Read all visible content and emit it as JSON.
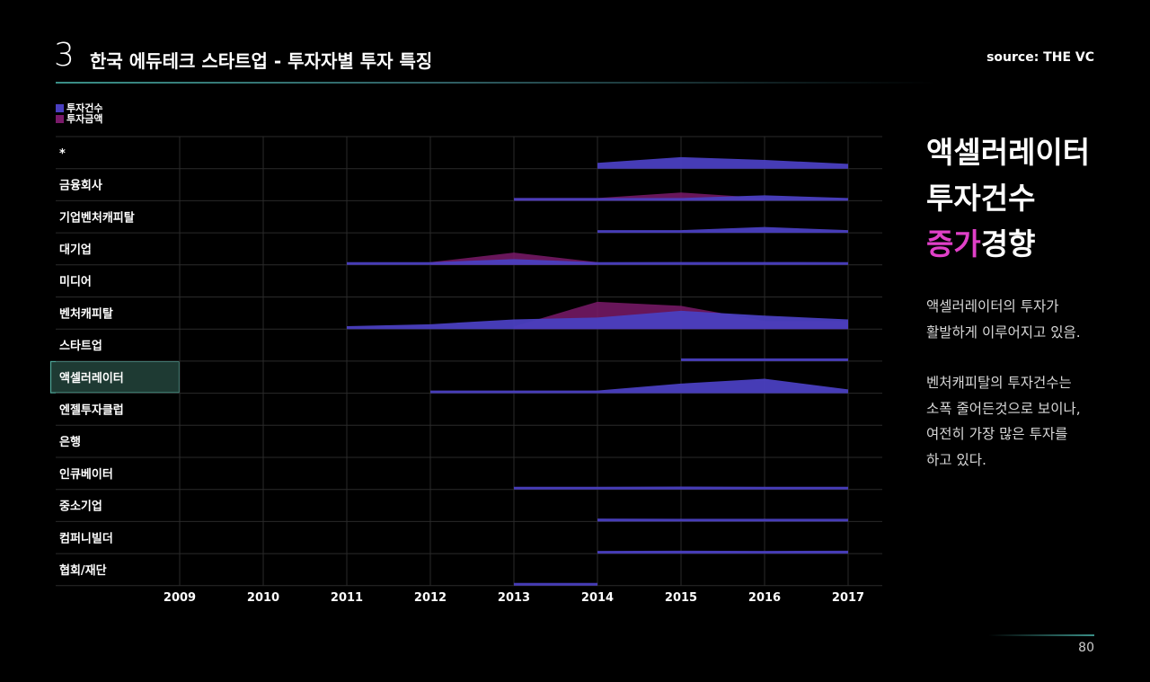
{
  "header": {
    "number": "3",
    "title": "한국 에듀테크 스타트업 - 투자자별 투자 특징",
    "source": "source: THE VC"
  },
  "side": {
    "headline_lines": [
      "액셀러레이터",
      "투자건수"
    ],
    "headline_pink": "증가",
    "headline_rest": "경향",
    "para1_lines": [
      "액셀러레이터의 투자가",
      "활발하게 이루어지고 있음."
    ],
    "para2_lines": [
      "벤처캐피탈의 투자건수는",
      "소폭 줄어든것으로 보이나,",
      "여전히 가장 많은 투자를",
      "하고 있다."
    ]
  },
  "page_number": "80",
  "colors": {
    "count": "#4a3fc0",
    "amount": "#7a1a6a",
    "grid": "#2a2a2a",
    "highlight_fill": "#1e3a33",
    "highlight_border": "#4fa89a",
    "accent_pink": "#e040c8"
  },
  "chart_data": {
    "type": "area",
    "title": "",
    "xlabel": "",
    "ylabel": "",
    "x": [
      2009,
      2010,
      2011,
      2012,
      2013,
      2014,
      2015,
      2016,
      2017
    ],
    "legend": [
      "투자건수",
      "투자금액"
    ],
    "legend_position": "top-left",
    "highlighted_category": "액셀러레이터",
    "categories": [
      {
        "name": "*",
        "count": [
          null,
          null,
          null,
          null,
          null,
          0.3,
          0.6,
          0.45,
          0.25
        ],
        "amount": []
      },
      {
        "name": "금융회사",
        "count": [
          null,
          null,
          null,
          null,
          0.05,
          0.05,
          0.1,
          0.28,
          0.08
        ],
        "amount": [
          null,
          null,
          null,
          null,
          0,
          0.05,
          0.3,
          0,
          null
        ]
      },
      {
        "name": "기업벤처캐피탈",
        "count": [
          null,
          null,
          null,
          null,
          null,
          0.05,
          0.12,
          0.3,
          0.05
        ],
        "amount": []
      },
      {
        "name": "대기업",
        "count": [
          null,
          null,
          0.1,
          0.1,
          0.3,
          0.08,
          0.15,
          0.15,
          0.08
        ],
        "amount": [
          null,
          null,
          null,
          0,
          0.45,
          0,
          null,
          null,
          null
        ]
      },
      {
        "name": "미디어",
        "count": [],
        "amount": []
      },
      {
        "name": "벤처캐피탈",
        "count": [
          null,
          null,
          0.15,
          0.25,
          0.5,
          0.6,
          0.95,
          0.7,
          0.5
        ],
        "amount": [
          null,
          null,
          null,
          null,
          0,
          1.0,
          0.85,
          0.3,
          0.3
        ]
      },
      {
        "name": "스타트업",
        "count": [
          null,
          null,
          null,
          null,
          null,
          null,
          0.08,
          0.08,
          0.08
        ],
        "amount": []
      },
      {
        "name": "액셀러레이터",
        "count": [
          null,
          null,
          null,
          0.08,
          0.08,
          0.08,
          0.5,
          0.75,
          0.2
        ],
        "amount": []
      },
      {
        "name": "엔젤투자클럽",
        "count": [],
        "amount": []
      },
      {
        "name": "은행",
        "count": [],
        "amount": []
      },
      {
        "name": "인큐베이터",
        "count": [
          null,
          null,
          null,
          null,
          0.1,
          0.1,
          0.15,
          0.12,
          0.12
        ],
        "amount": []
      },
      {
        "name": "중소기업",
        "count": [
          null,
          null,
          null,
          null,
          null,
          0.15,
          0.1,
          0.08,
          0.08
        ],
        "amount": []
      },
      {
        "name": "컴퍼니빌더",
        "count": [
          null,
          null,
          null,
          null,
          null,
          0.1,
          0.15,
          0.08,
          0.15
        ],
        "amount": []
      },
      {
        "name": "협회/재단",
        "count": [
          null,
          null,
          null,
          null,
          0.08,
          0.08,
          null,
          null,
          null
        ],
        "amount": []
      }
    ]
  }
}
